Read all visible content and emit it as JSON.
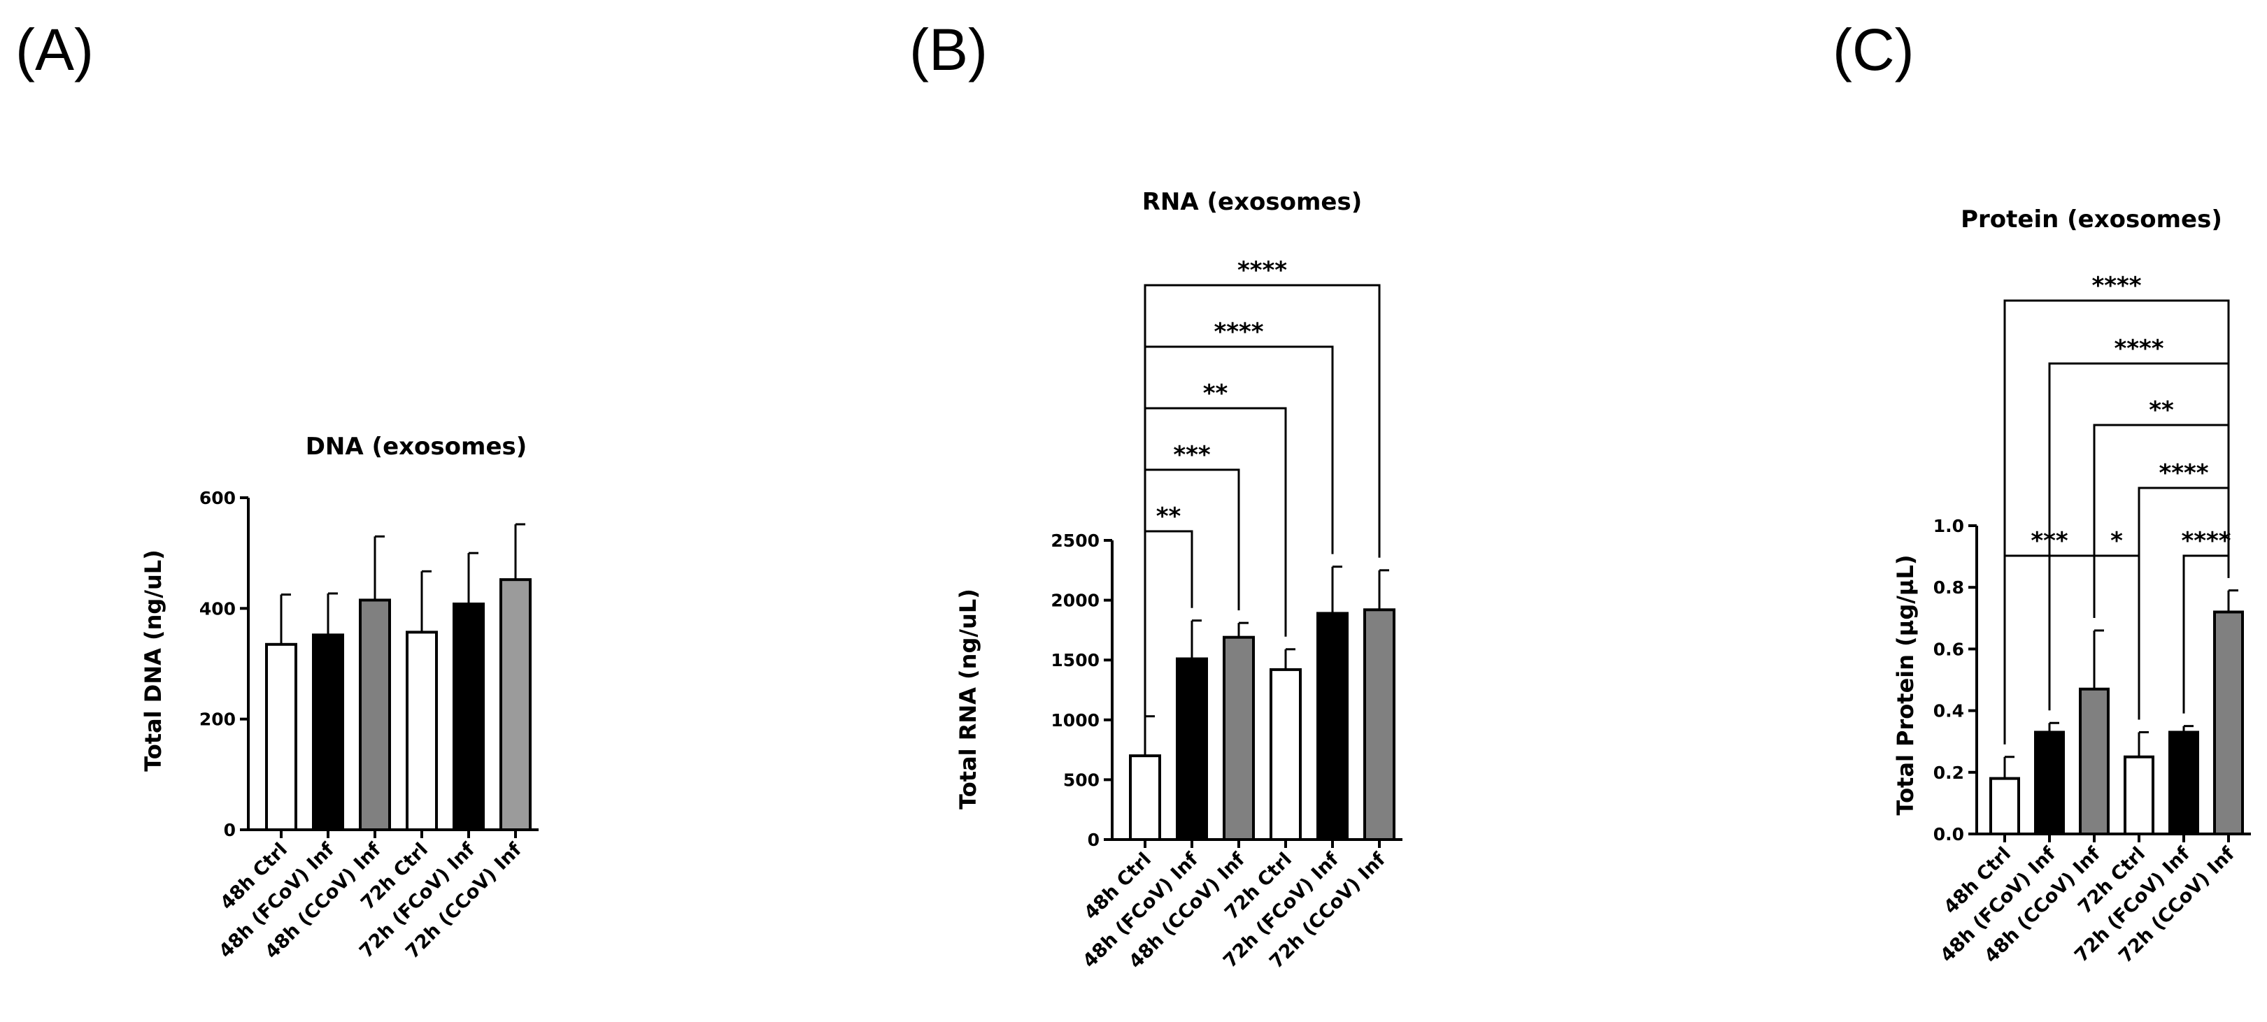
{
  "colors": {
    "Ctrl": "#ffffff",
    "FCoV": "#000000",
    "CCoV": "#808080",
    "CCoV_72h_dna": "#9b9b9b"
  },
  "chart_data": [
    {
      "type": "bar",
      "panel_label": "(A)",
      "title": "DNA (exosomes)",
      "ylabel": "Total DNA (ng/uL)",
      "categories": [
        "48h Ctrl",
        "48h (FCoV) Inf",
        "48h (CCoV) Inf",
        "72h Ctrl",
        "72h (FCoV) Inf",
        "72h (CCoV) Inf"
      ],
      "values": [
        335,
        352,
        415,
        357,
        408,
        452
      ],
      "errors": [
        90,
        75,
        115,
        110,
        92,
        100
      ],
      "bar_colors": [
        "Ctrl",
        "FCoV",
        "CCoV",
        "Ctrl",
        "FCoV",
        "CCoV_72h_dna"
      ],
      "ylim": [
        0,
        600
      ],
      "yticks": [
        "0",
        "200",
        "400",
        "600"
      ],
      "ytick_values": [
        0,
        200,
        400,
        600
      ],
      "significance": []
    },
    {
      "type": "bar",
      "panel_label": "(B)",
      "title": "RNA (exosomes)",
      "ylabel": "Total RNA (ng/uL)",
      "categories": [
        "48h Ctrl",
        "48h (FCoV) Inf",
        "48h (CCoV) Inf",
        "72h Ctrl",
        "72h (FCoV) Inf",
        "72h (CCoV) Inf"
      ],
      "values": [
        700,
        1510,
        1690,
        1420,
        1890,
        1920
      ],
      "errors": [
        330,
        320,
        120,
        170,
        390,
        330
      ],
      "bar_colors": [
        "Ctrl",
        "FCoV",
        "CCoV",
        "Ctrl",
        "FCoV",
        "CCoV"
      ],
      "ylim": [
        0,
        2500
      ],
      "yticks": [
        "0",
        "500",
        "1000",
        "1500",
        "2000",
        "2500"
      ],
      "ytick_values": [
        0,
        500,
        1000,
        1500,
        2000,
        2500
      ],
      "significance": [
        {
          "from": 0,
          "to": 1,
          "label": "**"
        },
        {
          "from": 0,
          "to": 2,
          "label": "***"
        },
        {
          "from": 0,
          "to": 3,
          "label": "**"
        },
        {
          "from": 0,
          "to": 4,
          "label": "****"
        },
        {
          "from": 0,
          "to": 5,
          "label": "****"
        }
      ]
    },
    {
      "type": "bar",
      "panel_label": "(C)",
      "title": "Protein (exosomes)",
      "ylabel": "Total Protein (µg/µL)",
      "categories": [
        "48h Ctrl",
        "48h (FCoV) Inf",
        "48h (CCoV) Inf",
        "72h Ctrl",
        "72h (FCoV) Inf",
        "72h (CCoV) Inf"
      ],
      "values": [
        0.18,
        0.33,
        0.47,
        0.25,
        0.33,
        0.72
      ],
      "errors": [
        0.07,
        0.03,
        0.19,
        0.08,
        0.02,
        0.07
      ],
      "bar_colors": [
        "Ctrl",
        "FCoV",
        "CCoV",
        "Ctrl",
        "FCoV",
        "CCoV"
      ],
      "ylim": [
        0,
        1.0
      ],
      "yticks": [
        "0.0",
        "0.2",
        "0.4",
        "0.6",
        "0.8",
        "1.0"
      ],
      "ytick_values": [
        0,
        0.2,
        0.4,
        0.6,
        0.8,
        1.0
      ],
      "significance": [
        {
          "from": 0,
          "to": 2,
          "label": "***"
        },
        {
          "from": 2,
          "to": 3,
          "label": "*"
        },
        {
          "from": 4,
          "to": 5,
          "label": "****"
        },
        {
          "from": 3,
          "to": 5,
          "label": "****"
        },
        {
          "from": 2,
          "to": 5,
          "label": "**"
        },
        {
          "from": 1,
          "to": 5,
          "label": "****"
        },
        {
          "from": 0,
          "to": 5,
          "label": "****"
        }
      ]
    }
  ]
}
